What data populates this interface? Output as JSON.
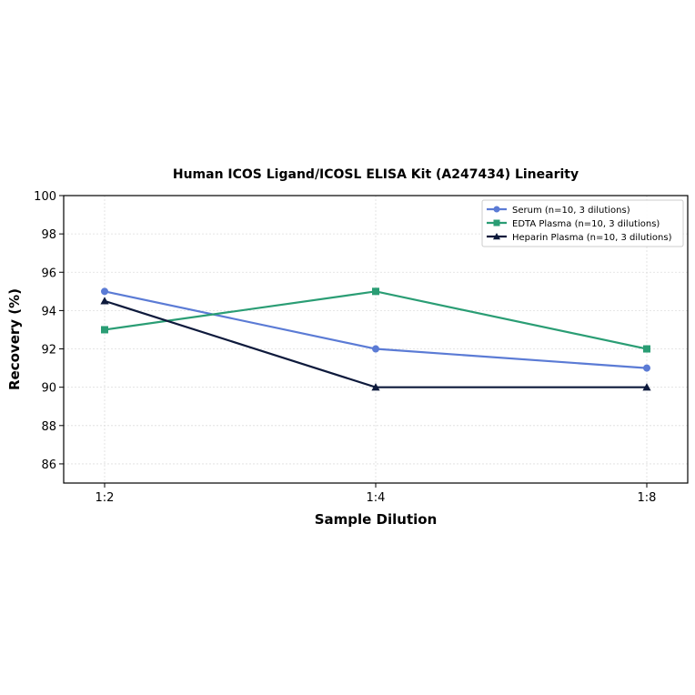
{
  "chart_data": {
    "type": "line",
    "title": "Human ICOS Ligand/ICOSL ELISA Kit (A247434) Linearity",
    "xlabel": "Sample Dilution",
    "ylabel": "Recovery (%)",
    "categories": [
      "1:2",
      "1:4",
      "1:8"
    ],
    "ylim": [
      85,
      100
    ],
    "yticks": [
      86,
      88,
      90,
      92,
      94,
      96,
      98,
      100
    ],
    "grid": true,
    "legend_position": "top-right",
    "series": [
      {
        "name": "Serum (n=10, 3 dilutions)",
        "values": [
          95,
          92,
          91
        ],
        "color": "#5b7bd5",
        "marker": "circle"
      },
      {
        "name": "EDTA Plasma (n=10, 3 dilutions)",
        "values": [
          93,
          95,
          92
        ],
        "color": "#2a9d74",
        "marker": "square"
      },
      {
        "name": "Heparin Plasma (n=10, 3 dilutions)",
        "values": [
          94.5,
          90,
          90
        ],
        "color": "#0e1a3c",
        "marker": "triangle"
      }
    ]
  }
}
